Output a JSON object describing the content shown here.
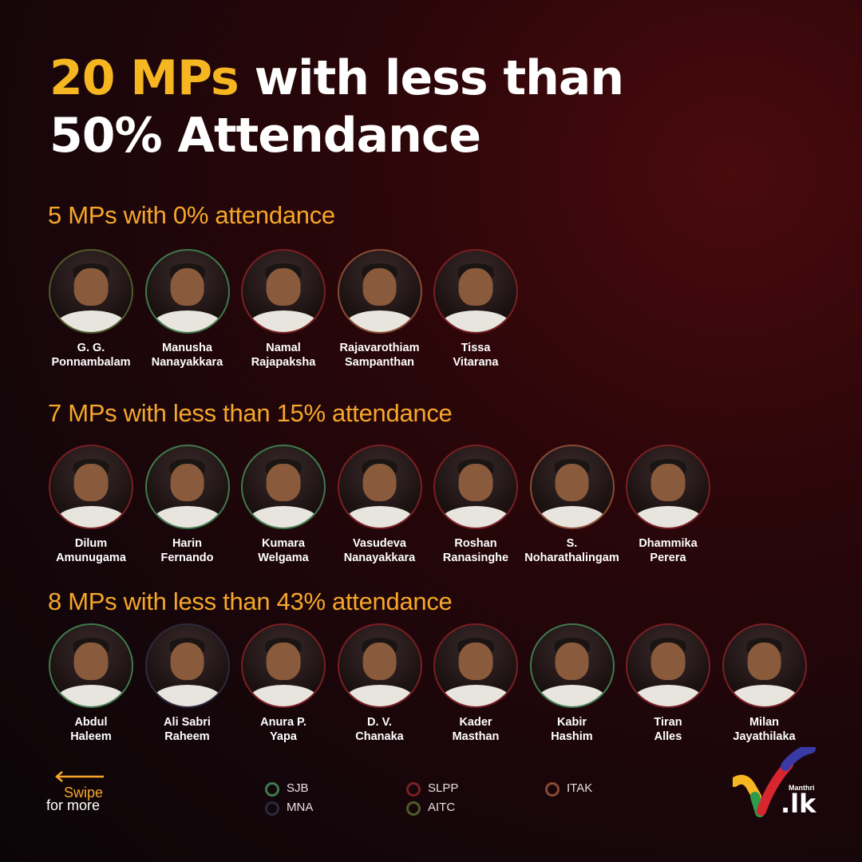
{
  "title": {
    "highlight": "20 MPs",
    "line1_rest": " with less than",
    "line2": "50% Attendance"
  },
  "sections": [
    {
      "heading": "5 MPs with 0% attendance",
      "mps": [
        {
          "first": "G. G.",
          "last": "Ponnambalam",
          "party": "AITC"
        },
        {
          "first": "Manusha",
          "last": "Nanayakkara",
          "party": "SJB"
        },
        {
          "first": "Namal",
          "last": "Rajapaksha",
          "party": "SLPP"
        },
        {
          "first": "Rajavarothiam",
          "last": "Sampanthan",
          "party": "ITAK"
        },
        {
          "first": "Tissa",
          "last": "Vitarana",
          "party": "SLPP"
        }
      ]
    },
    {
      "heading": "7 MPs with less than 15% attendance",
      "mps": [
        {
          "first": "Dilum",
          "last": "Amunugama",
          "party": "SLPP"
        },
        {
          "first": "Harin",
          "last": "Fernando",
          "party": "SJB"
        },
        {
          "first": "Kumara",
          "last": "Welgama",
          "party": "SJB"
        },
        {
          "first": "Vasudeva",
          "last": "Nanayakkara",
          "party": "SLPP"
        },
        {
          "first": "Roshan",
          "last": "Ranasinghe",
          "party": "SLPP"
        },
        {
          "first": "S.",
          "last": "Noharathalingam",
          "party": "ITAK"
        },
        {
          "first": "Dhammika",
          "last": "Perera",
          "party": "SLPP"
        }
      ]
    },
    {
      "heading": "8 MPs with less than 43% attendance",
      "mps": [
        {
          "first": "Abdul",
          "last": "Haleem",
          "party": "SJB"
        },
        {
          "first": "Ali Sabri",
          "last": "Raheem",
          "party": "MNA"
        },
        {
          "first": "Anura P.",
          "last": "Yapa",
          "party": "SLPP"
        },
        {
          "first": "D. V.",
          "last": "Chanaka",
          "party": "SLPP"
        },
        {
          "first": "Kader",
          "last": "Masthan",
          "party": "SLPP"
        },
        {
          "first": "Kabir",
          "last": "Hashim",
          "party": "SJB"
        },
        {
          "first": "Tiran",
          "last": "Alles",
          "party": "SLPP"
        },
        {
          "first": "Milan",
          "last": "Jayathilaka",
          "party": "SLPP"
        }
      ]
    }
  ],
  "swipe": {
    "line1": "Swipe",
    "line2": "for more",
    "icon": "left-arrow-icon"
  },
  "legend": [
    {
      "label": "SJB",
      "color": "#3f7a4c"
    },
    {
      "label": "MNA",
      "color": "#2c2a3e"
    },
    {
      "label": "SLPP",
      "color": "#7a1f22"
    },
    {
      "label": "AITC",
      "color": "#4e5a2a"
    },
    {
      "label": "ITAK",
      "color": "#8a4a34"
    }
  ],
  "brand": {
    "small": "Manthri",
    "big": ".lk"
  },
  "colors": {
    "accent": "#f6b621",
    "heading": "#f6a72a",
    "background": "#1a0608"
  }
}
